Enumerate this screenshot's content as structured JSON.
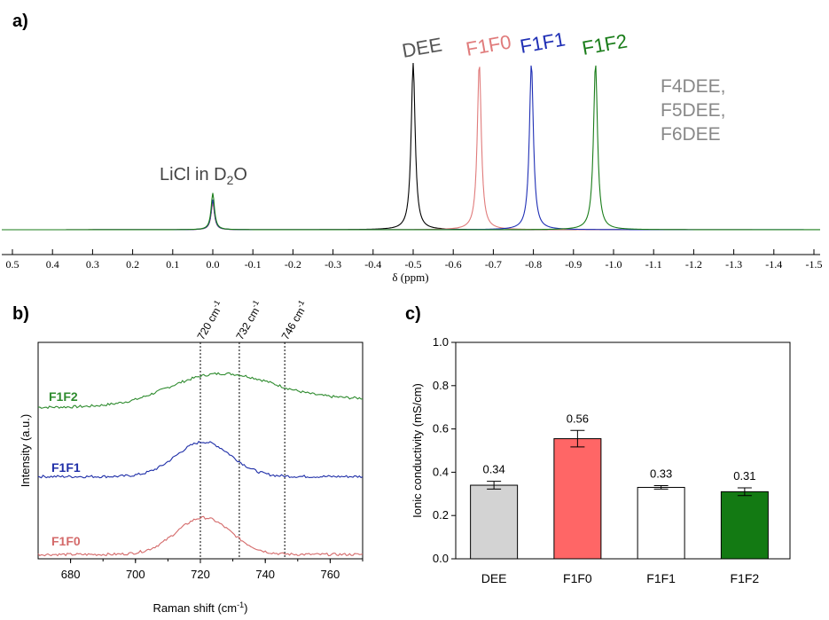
{
  "chart_data": [
    {
      "panel": "a)",
      "type": "line",
      "title": "",
      "xlabel": "δ (ppm)",
      "ylabel": "",
      "xlim": [
        0.55,
        -1.55
      ],
      "x_ticks": [
        "0.5",
        "0.4",
        "0.3",
        "0.2",
        "0.1",
        "0.0",
        "-0.1",
        "-0.2",
        "-0.3",
        "-0.4",
        "-0.5",
        "-0.6",
        "-0.7",
        "-0.8",
        "-0.9",
        "-1.0",
        "-1.1",
        "-1.2",
        "-1.3",
        "-1.4",
        "-1.5"
      ],
      "x_tick_values": [
        0.5,
        0.4,
        0.3,
        0.2,
        0.1,
        0.0,
        -0.1,
        -0.2,
        -0.3,
        -0.4,
        -0.5,
        -0.6,
        -0.7,
        -0.8,
        -0.9,
        -1.0,
        -1.1,
        -1.2,
        -1.3,
        -1.4,
        -1.5
      ],
      "series": [
        {
          "name": "DEE",
          "color": "#000000",
          "peak_ppm": -0.5,
          "peak_height": 1.0,
          "ref_height": 0.17
        },
        {
          "name": "F1F0",
          "color": "#e07b7b",
          "peak_ppm": -0.665,
          "peak_height": 1.0,
          "ref_height": 0.16
        },
        {
          "name": "F1F1",
          "color": "#1f2fb5",
          "peak_ppm": -0.795,
          "peak_height": 1.0,
          "ref_height": 0.18
        },
        {
          "name": "F1F2",
          "color": "#1a7d1a",
          "peak_ppm": -0.955,
          "peak_height": 1.0,
          "ref_height": 0.22
        }
      ],
      "reference_peak_ppm": 0.0,
      "annotations": {
        "licl_prefix": "LiCl in D",
        "licl_sub": "2",
        "licl_suffix": "O",
        "dee": "DEE",
        "f1f0": "F1F0",
        "f1f1": "F1F1",
        "f1f2": "F1F2",
        "f4dee": "F4DEE,",
        "f5dee": "F5DEE,",
        "f6dee": "F6DEE"
      }
    },
    {
      "panel": "b)",
      "type": "line",
      "title": "",
      "xlabel_prefix": "Raman shift (cm",
      "xlabel_sup": "-1",
      "xlabel_suffix": ")",
      "ylabel": "Intensity (a.u.)",
      "xlim": [
        670,
        770
      ],
      "x_ticks": [
        680,
        700,
        720,
        740,
        760
      ],
      "reference_lines": [
        {
          "x": 720,
          "label": "720 cm",
          "sup": "-1"
        },
        {
          "x": 732,
          "label": "732 cm",
          "sup": "-1"
        },
        {
          "x": 746,
          "label": "746 cm",
          "sup": "-1"
        }
      ],
      "series": [
        {
          "name": "F1F2",
          "color": "#2e8b2e",
          "offset": 0.7,
          "baseline": 0.0,
          "peak_center": 725,
          "peak_width": 22,
          "peak_height": 0.13,
          "tail": 0.04
        },
        {
          "name": "F1F1",
          "color": "#1f2fa8",
          "offset": 0.38,
          "baseline": 0.0,
          "peak_center": 721,
          "peak_width": 12,
          "peak_height": 0.16,
          "tail": 0.0
        },
        {
          "name": "F1F0",
          "color": "#d46a6a",
          "offset": 0.02,
          "baseline": 0.0,
          "peak_center": 721,
          "peak_width": 12,
          "peak_height": 0.17,
          "tail": 0.0
        }
      ]
    },
    {
      "panel": "c)",
      "type": "bar",
      "title": "",
      "xlabel": "",
      "ylabel": "Ionic conductivity (mS/cm)",
      "ylim": [
        0.0,
        1.0
      ],
      "y_ticks": [
        "0.0",
        "0.2",
        "0.4",
        "0.6",
        "0.8",
        "1.0"
      ],
      "y_tick_values": [
        0.0,
        0.2,
        0.4,
        0.6,
        0.8,
        1.0
      ],
      "categories": [
        "DEE",
        "F1F0",
        "F1F1",
        "F1F2"
      ],
      "values": [
        0.34,
        0.555,
        0.33,
        0.31
      ],
      "errors": [
        0.018,
        0.038,
        0.008,
        0.018
      ],
      "labels": [
        "0.34",
        "0.56",
        "0.33",
        "0.31"
      ],
      "colors": [
        "#d3d3d3",
        "#ff6666",
        "#ffffff",
        "#137a13"
      ]
    }
  ]
}
